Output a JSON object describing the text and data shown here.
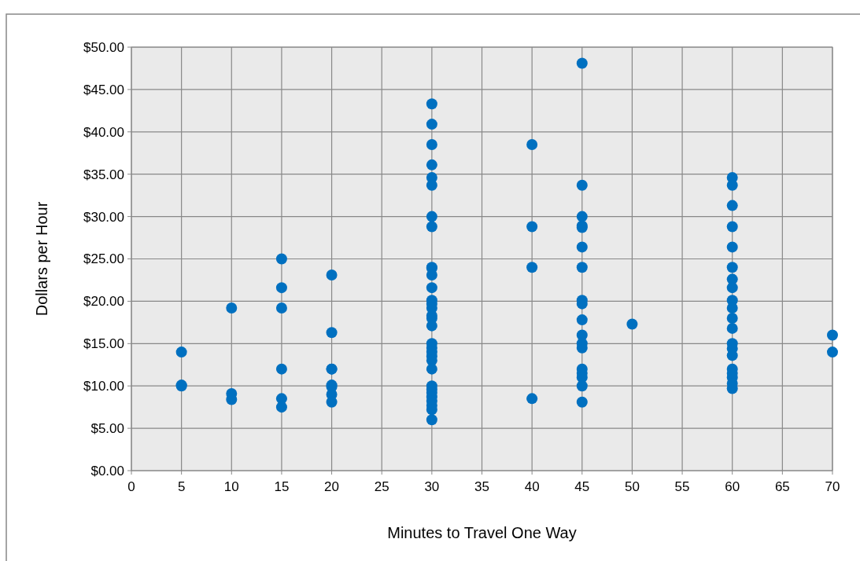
{
  "chart_data": {
    "type": "scatter",
    "xlabel": "Minutes to Travel One Way",
    "ylabel": "Dollars per Hour",
    "xlim": [
      0,
      70
    ],
    "xticks": [
      0,
      5,
      10,
      15,
      20,
      25,
      30,
      35,
      40,
      45,
      50,
      55,
      60,
      65,
      70
    ],
    "ylim": [
      0,
      50
    ],
    "yticks": [
      {
        "value": 0,
        "label": "$0.00"
      },
      {
        "value": 5,
        "label": "$5.00"
      },
      {
        "value": 10,
        "label": "$10.00"
      },
      {
        "value": 15,
        "label": "$15.00"
      },
      {
        "value": 20,
        "label": "$20.00"
      },
      {
        "value": 25,
        "label": "$25.00"
      },
      {
        "value": 30,
        "label": "$30.00"
      },
      {
        "value": 35,
        "label": "$35.00"
      },
      {
        "value": 40,
        "label": "$40.00"
      },
      {
        "value": 45,
        "label": "$45.00"
      },
      {
        "value": 50,
        "label": "$50.00"
      }
    ],
    "grid": true,
    "marker": "circle",
    "series": [
      {
        "color": "#0070c0",
        "x": [
          5,
          5,
          5,
          10,
          10,
          10,
          15,
          15,
          15,
          15,
          15,
          15,
          20,
          20,
          20,
          20,
          20,
          20,
          20,
          20,
          30,
          30,
          30,
          30,
          30,
          30,
          30,
          30,
          30,
          30,
          30,
          30,
          30,
          30,
          30,
          30,
          30,
          30,
          30,
          30,
          30,
          30,
          30,
          30,
          30,
          30,
          30,
          30,
          30,
          30,
          30,
          30,
          40,
          40,
          40,
          40,
          45,
          45,
          45,
          45,
          45,
          45,
          45,
          45,
          45,
          45,
          45,
          45,
          45,
          45,
          45,
          45,
          45,
          45,
          50,
          60,
          60,
          60,
          60,
          60,
          60,
          60,
          60,
          60,
          60,
          60,
          60,
          60,
          60,
          60,
          60,
          60,
          60,
          60,
          60,
          70,
          70
        ],
        "values": [
          14.0,
          10.1,
          10.0,
          19.2,
          9.1,
          8.4,
          25.0,
          21.6,
          19.2,
          12.0,
          8.5,
          7.5,
          23.1,
          16.3,
          12.0,
          12.0,
          10.1,
          9.9,
          9.0,
          8.1,
          43.3,
          40.9,
          38.5,
          36.1,
          34.6,
          33.7,
          30.0,
          28.8,
          24.0,
          23.9,
          23.1,
          21.6,
          20.1,
          19.7,
          19.2,
          18.3,
          18.0,
          17.1,
          15.0,
          14.5,
          14.0,
          13.5,
          13.0,
          12.0,
          10.0,
          9.6,
          9.2,
          8.7,
          8.2,
          7.7,
          7.2,
          6.0,
          38.5,
          28.8,
          24.0,
          8.5,
          48.1,
          33.7,
          30.0,
          28.9,
          28.7,
          26.4,
          24.0,
          20.1,
          19.7,
          17.8,
          16.0,
          15.0,
          14.5,
          12.0,
          11.5,
          11.0,
          10.0,
          8.1,
          17.3,
          34.6,
          33.7,
          31.3,
          28.8,
          26.4,
          24.0,
          22.6,
          21.6,
          20.1,
          19.2,
          18.0,
          16.8,
          15.0,
          14.4,
          13.6,
          12.0,
          11.5,
          11.0,
          10.3,
          9.7,
          16.0,
          14.0
        ]
      }
    ]
  }
}
